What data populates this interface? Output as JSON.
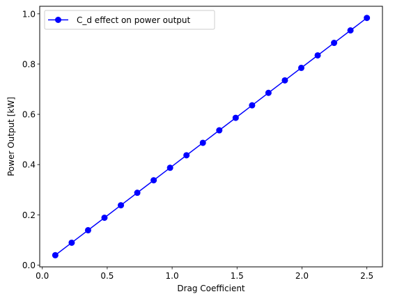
{
  "chart_data": {
    "type": "line",
    "title": "",
    "xlabel": "Drag Coefficient",
    "ylabel": "Power Output [kW]",
    "xlim": [
      -0.02,
      2.62
    ],
    "ylim": [
      -0.007,
      1.03
    ],
    "grid": false,
    "legend_placement": "top-left",
    "x_ticks": [
      0.0,
      0.5,
      1.0,
      1.5,
      2.0,
      2.5
    ],
    "x_tick_labels": [
      "0.0",
      "0.5",
      "1.0",
      "1.5",
      "2.0",
      "2.5"
    ],
    "y_ticks": [
      0.0,
      0.2,
      0.4,
      0.6,
      0.8,
      1.0
    ],
    "y_tick_labels": [
      "0.0",
      "0.2",
      "0.4",
      "0.6",
      "0.8",
      "1.0"
    ],
    "series": [
      {
        "name": "C_d effect on power output",
        "color": "#0000ff",
        "marker": "circle",
        "x": [
          0.1,
          0.2263,
          0.3526,
          0.4789,
          0.6053,
          0.7316,
          0.8579,
          0.9842,
          1.1105,
          1.2368,
          1.3632,
          1.4895,
          1.6158,
          1.7421,
          1.8684,
          1.9947,
          2.1211,
          2.2474,
          2.3737,
          2.5
        ],
        "y": [
          0.0394,
          0.0891,
          0.1388,
          0.1885,
          0.2382,
          0.2879,
          0.3376,
          0.3873,
          0.437,
          0.4867,
          0.5364,
          0.5861,
          0.6358,
          0.6855,
          0.7352,
          0.7849,
          0.8346,
          0.8843,
          0.934,
          0.9837
        ]
      }
    ]
  }
}
